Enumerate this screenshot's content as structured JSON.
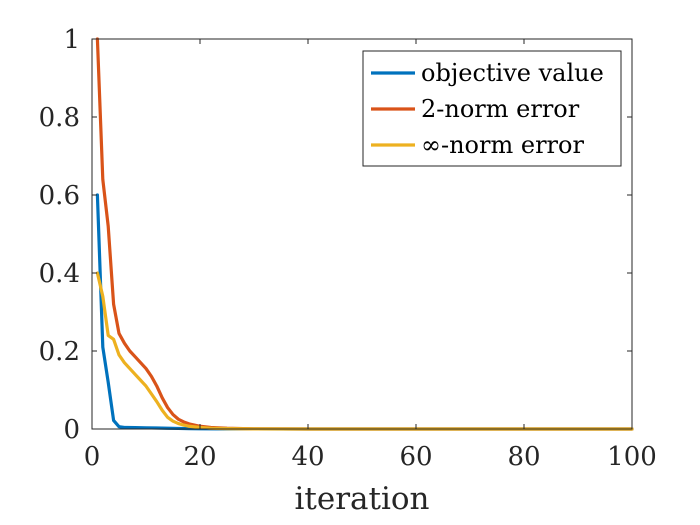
{
  "chart_data": {
    "type": "line",
    "title": "",
    "xlabel": "iteration",
    "ylabel": "",
    "xlim": [
      0,
      100
    ],
    "ylim": [
      0,
      1
    ],
    "xticks": [
      0,
      20,
      40,
      60,
      80,
      100
    ],
    "yticks": [
      0,
      0.2,
      0.4,
      0.6,
      0.8,
      1
    ],
    "xtick_labels": [
      "0",
      "20",
      "40",
      "60",
      "80",
      "100"
    ],
    "ytick_labels": [
      "0",
      "0.2",
      "0.4",
      "0.6",
      "0.8",
      "1"
    ],
    "grid": false,
    "legend_position": "top-right",
    "series": [
      {
        "name": "objective value",
        "color": "#0072BD",
        "x": [
          1,
          2,
          3,
          4,
          5,
          6,
          8,
          10,
          12,
          14,
          16,
          18,
          20,
          25,
          30,
          40,
          60,
          80,
          100
        ],
        "y": [
          0.6,
          0.21,
          0.12,
          0.022,
          0.006,
          0.004,
          0.0035,
          0.003,
          0.0025,
          0.002,
          0.0015,
          0.001,
          0.0007,
          0.0003,
          0.0001,
          0,
          0,
          0,
          0
        ]
      },
      {
        "name": "2-norm error",
        "color": "#D95319",
        "x": [
          1,
          2,
          3,
          4,
          5,
          6,
          7,
          8,
          9,
          10,
          11,
          12,
          13,
          14,
          15,
          16,
          17,
          18,
          20,
          22,
          25,
          30,
          40,
          60,
          80,
          100
        ],
        "y": [
          1.0,
          0.64,
          0.52,
          0.32,
          0.245,
          0.22,
          0.2,
          0.185,
          0.17,
          0.155,
          0.135,
          0.11,
          0.08,
          0.055,
          0.037,
          0.025,
          0.018,
          0.013,
          0.007,
          0.004,
          0.002,
          0.0005,
          0,
          0,
          0,
          0
        ]
      },
      {
        "name": "∞-norm error",
        "color": "#EDB120",
        "x": [
          1,
          2,
          3,
          4,
          5,
          6,
          7,
          8,
          9,
          10,
          11,
          12,
          13,
          14,
          15,
          16,
          17,
          18,
          20,
          22,
          25,
          30,
          40,
          60,
          80,
          100
        ],
        "y": [
          0.4,
          0.34,
          0.24,
          0.23,
          0.19,
          0.17,
          0.155,
          0.14,
          0.125,
          0.11,
          0.09,
          0.07,
          0.048,
          0.03,
          0.02,
          0.014,
          0.01,
          0.007,
          0.004,
          0.002,
          0.001,
          0.0003,
          0,
          0,
          0,
          0
        ]
      }
    ]
  }
}
